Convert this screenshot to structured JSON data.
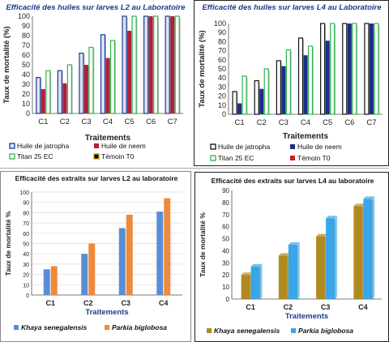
{
  "chart_data": [
    {
      "type": "bar",
      "title": "Efficacité des huiles sur larves L2  au Laboratoire",
      "xlabel": "Traitements",
      "ylabel": "Taux de mortalité (%)",
      "ylim": [
        0,
        100
      ],
      "yticks": [
        0,
        10,
        20,
        30,
        40,
        50,
        60,
        70,
        80,
        90,
        100
      ],
      "categories": [
        "C1",
        "C2",
        "C3",
        "C4",
        "C5",
        "C6",
        "C7"
      ],
      "legend_position": "bottom",
      "series": [
        {
          "name": "Huile de jatropha",
          "color": "#1f3a93",
          "fill": "#dbe4f2",
          "values": [
            37,
            44,
            62,
            81,
            100,
            100,
            100
          ]
        },
        {
          "name": "Huile de neem",
          "color": "#b0203a",
          "fill": "#b0203a",
          "values": [
            25,
            31,
            50,
            57,
            85,
            100,
            100
          ]
        },
        {
          "name": "Titan 25 EC",
          "color": "#2db34a",
          "fill": "#ffffff",
          "values": [
            44,
            50,
            68,
            75,
            100,
            100,
            100
          ]
        },
        {
          "name": "Témoin T0",
          "color": "#c89a10",
          "fill": "#000000",
          "values": [
            0,
            0,
            0,
            0,
            0,
            0,
            0
          ]
        }
      ]
    },
    {
      "type": "bar",
      "title": "Efficacité des huiles sur larves L4  au Laboratoire",
      "xlabel": "Traitements",
      "ylabel": "Taux de mortalité (%)",
      "ylim": [
        0,
        100
      ],
      "yticks": [
        0,
        10,
        20,
        30,
        40,
        50,
        60,
        70,
        80,
        90,
        100
      ],
      "categories": [
        "C1",
        "C2",
        "C3",
        "C4",
        "C5",
        "C6",
        "C7"
      ],
      "legend_position": "bottom",
      "series": [
        {
          "name": "Huile de jatropha",
          "color": "#111111",
          "fill": "#ffffff",
          "values": [
            25,
            37,
            59,
            84,
            100,
            100,
            100
          ]
        },
        {
          "name": "Huile de neem",
          "color": "#1a2f8a",
          "fill": "#1a2f8a",
          "values": [
            12,
            28,
            53,
            65,
            81,
            100,
            100
          ]
        },
        {
          "name": "Titan 25 EC",
          "color": "#2db34a",
          "fill": "#ffffff",
          "values": [
            42,
            50,
            71,
            75,
            100,
            100,
            100
          ]
        },
        {
          "name": "Témoin T0",
          "color": "#cc1a1a",
          "fill": "#cc1a1a",
          "values": [
            0,
            0,
            0,
            0,
            0,
            0,
            0
          ]
        }
      ]
    },
    {
      "type": "bar",
      "title": "Efficacité des extraits  sur larves L2 au laboratoire",
      "xlabel": "Traitements",
      "ylabel": "Taux de mortalité %",
      "ylim": [
        0,
        100
      ],
      "yticks": [
        0,
        10,
        20,
        30,
        40,
        50,
        60,
        70,
        80,
        90,
        100
      ],
      "categories": [
        "C1",
        "C2",
        "C3",
        "C4"
      ],
      "legend_position": "bottom",
      "series": [
        {
          "name": "Khaya senegalensis",
          "color": "#5b8dd6",
          "fill": "#5b8dd6",
          "values": [
            25,
            40,
            65,
            81
          ]
        },
        {
          "name": "Parkia biglobosa",
          "color": "#ef8a3c",
          "fill": "#ef8a3c",
          "values": [
            28,
            50,
            78,
            94
          ]
        }
      ]
    },
    {
      "type": "bar",
      "title": "Efficacité des extraits  sur larves L4 au laboratoire",
      "xlabel": "Traitements",
      "ylabel": "Taux de mortalité %",
      "ylim": [
        0,
        90
      ],
      "yticks": [
        0,
        10,
        20,
        30,
        40,
        50,
        60,
        70,
        80,
        90
      ],
      "categories": [
        "C1",
        "C2",
        "C3",
        "C4"
      ],
      "legend_position": "bottom",
      "series": [
        {
          "name": "Khaya senegalensis",
          "color": "#b08a1e",
          "fill": "#b08a1e",
          "values": [
            20,
            36,
            52,
            77
          ]
        },
        {
          "name": "Parkia biglobosa",
          "color": "#38a6e8",
          "fill": "#38a6e8",
          "values": [
            27,
            45,
            67,
            83
          ]
        }
      ]
    }
  ]
}
